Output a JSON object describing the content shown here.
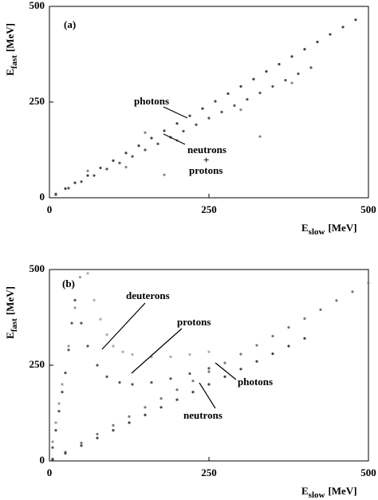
{
  "chart_data": [
    {
      "type": "scatter",
      "panel_label": "(a)",
      "x_label": {
        "symbol": "E",
        "subscript": "slow",
        "unit": "[MeV]"
      },
      "y_label": {
        "symbol": "E",
        "subscript": "fast",
        "unit": "[MeV]"
      },
      "xlim": [
        0,
        500
      ],
      "ylim": [
        0,
        500
      ],
      "xticks": [
        0,
        250,
        500
      ],
      "yticks": [
        0,
        250,
        500
      ],
      "annotations": [
        "photons",
        "neutrons",
        "+",
        "protons"
      ],
      "series": [
        {
          "color": "#444444",
          "x": [
            10,
            25,
            40,
            60,
            80,
            100,
            120,
            140,
            160,
            180,
            200,
            220,
            240,
            260,
            280,
            300,
            320,
            340,
            360,
            380,
            400,
            420,
            440,
            460,
            480
          ],
          "values": [
            10,
            24,
            39,
            58,
            78,
            97,
            117,
            136,
            156,
            175,
            194,
            214,
            233,
            252,
            272,
            291,
            310,
            330,
            349,
            369,
            388,
            407,
            427,
            446,
            465
          ]
        },
        {
          "color": "#555555",
          "x": [
            10,
            30,
            50,
            70,
            90,
            110,
            130,
            150,
            170,
            190,
            210,
            230,
            250,
            270,
            290,
            310,
            330,
            350,
            370,
            390,
            410
          ],
          "values": [
            8,
            25,
            42,
            58,
            75,
            91,
            108,
            125,
            141,
            158,
            174,
            191,
            208,
            224,
            241,
            257,
            274,
            291,
            307,
            324,
            340
          ]
        },
        {
          "color": "#888888",
          "x": [
            120,
            180,
            300,
            150,
            330,
            60,
            200,
            380
          ],
          "values": [
            80,
            60,
            230,
            170,
            160,
            70,
            150,
            300
          ]
        }
      ]
    },
    {
      "type": "scatter",
      "panel_label": "(b)",
      "x_label": {
        "symbol": "E",
        "subscript": "slow",
        "unit": "[MeV]"
      },
      "y_label": {
        "symbol": "E",
        "subscript": "fast",
        "unit": "[MeV]"
      },
      "xlim": [
        0,
        500
      ],
      "ylim": [
        0,
        500
      ],
      "xticks": [
        0,
        250,
        500
      ],
      "yticks": [
        0,
        250,
        500
      ],
      "annotations": [
        "deuterons",
        "protons",
        "photons",
        "neutrons"
      ],
      "series": [
        {
          "color": "#aaaaaa",
          "x": [
            60,
            70,
            80,
            90,
            100,
            115,
            130,
            160,
            190,
            220,
            250
          ],
          "values": [
            490,
            420,
            370,
            330,
            300,
            285,
            278,
            272,
            272,
            278,
            285
          ]
        },
        {
          "color": "#555555",
          "x": [
            5,
            10,
            15,
            20,
            25,
            30,
            35,
            40,
            50,
            60,
            75,
            90,
            110,
            130,
            160,
            190,
            220,
            250
          ],
          "values": [
            35,
            80,
            130,
            180,
            230,
            290,
            360,
            420,
            360,
            300,
            250,
            220,
            205,
            200,
            205,
            215,
            228,
            242
          ]
        },
        {
          "color": "#777777",
          "x": [
            5,
            25,
            50,
            75,
            100,
            125,
            150,
            175,
            200,
            225,
            250,
            275,
            300,
            325,
            350,
            375,
            400,
            425,
            450,
            475,
            500
          ],
          "values": [
            5,
            23,
            47,
            70,
            93,
            116,
            140,
            163,
            186,
            209,
            233,
            256,
            279,
            302,
            326,
            349,
            372,
            395,
            419,
            442,
            465
          ]
        },
        {
          "color": "#444444",
          "x": [
            5,
            25,
            50,
            75,
            100,
            125,
            150,
            175,
            200,
            225,
            250,
            275,
            300,
            325,
            350,
            375,
            400
          ],
          "values": [
            4,
            20,
            40,
            60,
            80,
            100,
            120,
            140,
            160,
            180,
            200,
            220,
            240,
            260,
            280,
            300,
            320
          ]
        },
        {
          "color": "#999999",
          "x": [
            5,
            10,
            15,
            20,
            30,
            40,
            48
          ],
          "values": [
            50,
            100,
            150,
            200,
            300,
            400,
            480
          ]
        }
      ]
    }
  ]
}
